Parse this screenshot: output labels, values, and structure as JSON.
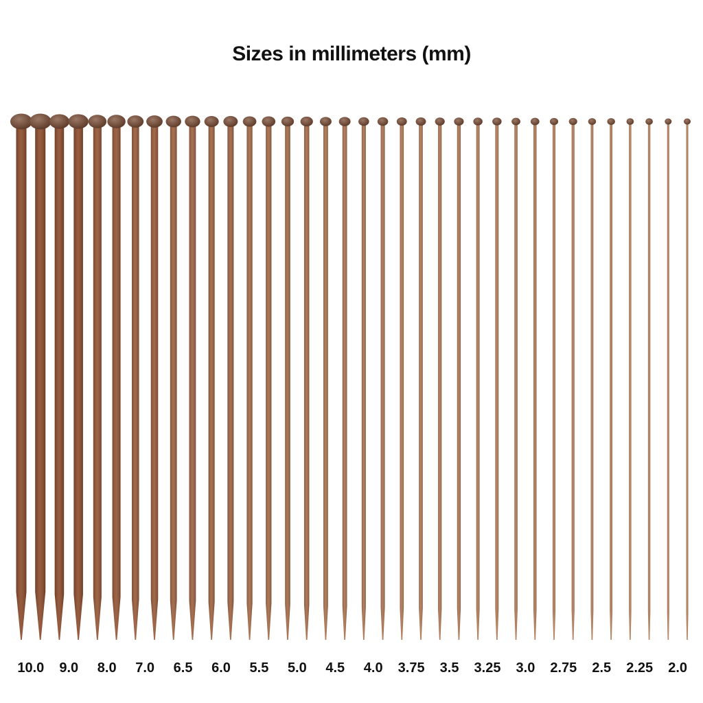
{
  "title": "Sizes in millimeters (mm)",
  "colors": {
    "dark_wood": "#8a4a2a",
    "light_wood": "#b98560",
    "knob": "#7a4a33"
  },
  "sizes": [
    {
      "label": "10.0",
      "mm": 10.0
    },
    {
      "label": "9.0",
      "mm": 9.0
    },
    {
      "label": "8.0",
      "mm": 8.0
    },
    {
      "label": "7.0",
      "mm": 7.0
    },
    {
      "label": "6.5",
      "mm": 6.5
    },
    {
      "label": "6.0",
      "mm": 6.0
    },
    {
      "label": "5.5",
      "mm": 5.5
    },
    {
      "label": "5.0",
      "mm": 5.0
    },
    {
      "label": "4.5",
      "mm": 4.5
    },
    {
      "label": "4.0",
      "mm": 4.0
    },
    {
      "label": "3.75",
      "mm": 3.75
    },
    {
      "label": "3.5",
      "mm": 3.5
    },
    {
      "label": "3.25",
      "mm": 3.25
    },
    {
      "label": "3.0",
      "mm": 3.0
    },
    {
      "label": "2.75",
      "mm": 2.75
    },
    {
      "label": "2.5",
      "mm": 2.5
    },
    {
      "label": "2.25",
      "mm": 2.25
    },
    {
      "label": "2.0",
      "mm": 2.0
    }
  ],
  "needles_per_size": 2
}
